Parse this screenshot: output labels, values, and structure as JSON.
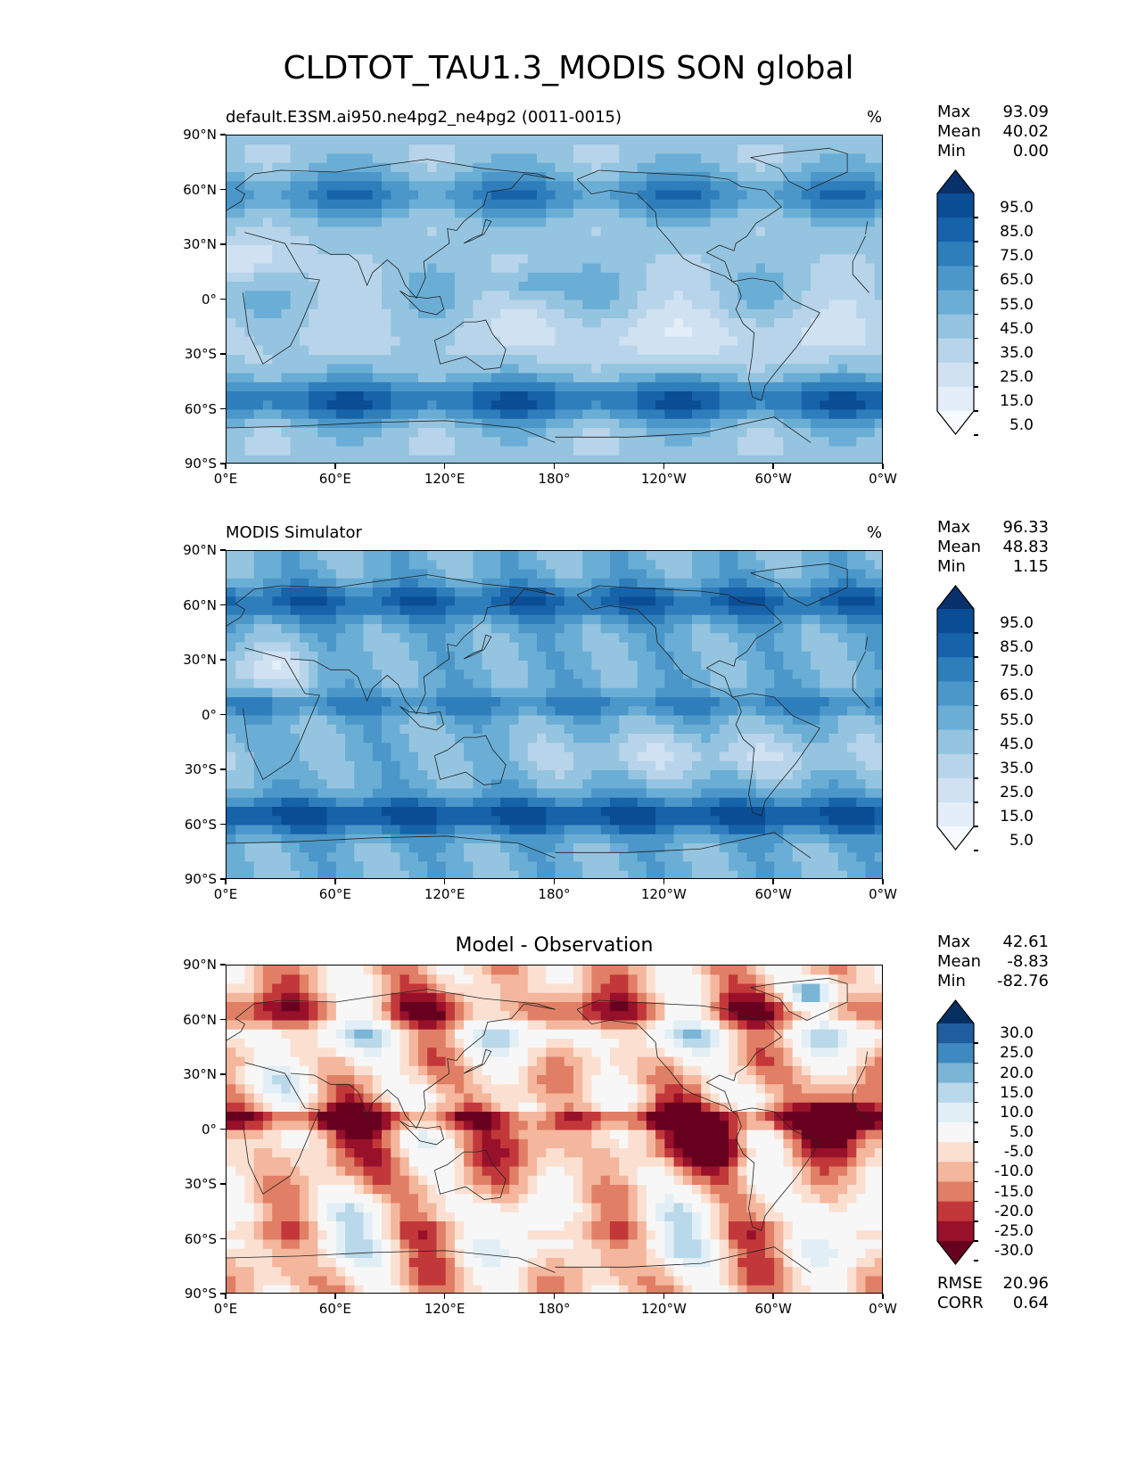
{
  "figure": {
    "title": "CLDTOT_TAU1.3_MODIS SON global"
  },
  "chart_data": [
    {
      "type": "heatmap",
      "panel": "test",
      "title": "default.E3SM.ai950.ne4pg2_ne4pg2 (0011-0015)",
      "units": "%",
      "stats": {
        "max_label": "Max",
        "max": "93.09",
        "mean_label": "Mean",
        "mean": "40.02",
        "min_label": "Min",
        "min": "0.00"
      },
      "x_ticks": [
        "0°E",
        "60°E",
        "120°E",
        "180°",
        "120°W",
        "60°W",
        "0°W"
      ],
      "y_ticks": [
        "90°N",
        "60°N",
        "30°N",
        "0°",
        "30°S",
        "60°S",
        "90°S"
      ],
      "xlim": [
        0,
        360
      ],
      "ylim": [
        -90,
        90
      ],
      "colormap": "Blues",
      "colorbar_levels": [
        "95.0",
        "85.0",
        "75.0",
        "65.0",
        "55.0",
        "45.0",
        "35.0",
        "25.0",
        "15.0",
        "5.0"
      ],
      "colorbar_colors": [
        "#08306b",
        "#0b4d94",
        "#1663aa",
        "#2f7ebc",
        "#4b97c9",
        "#6aaed6",
        "#94c4df",
        "#b7d4ea",
        "#d0e1f2",
        "#e3eef8",
        "#f7fbff"
      ]
    },
    {
      "type": "heatmap",
      "panel": "reference",
      "title": "MODIS Simulator",
      "units": "%",
      "stats": {
        "max_label": "Max",
        "max": "96.33",
        "mean_label": "Mean",
        "mean": "48.83",
        "min_label": "Min",
        "min": "1.15"
      },
      "x_ticks": [
        "0°E",
        "60°E",
        "120°E",
        "180°",
        "120°W",
        "60°W",
        "0°W"
      ],
      "y_ticks": [
        "90°N",
        "60°N",
        "30°N",
        "0°",
        "30°S",
        "60°S",
        "90°S"
      ],
      "xlim": [
        0,
        360
      ],
      "ylim": [
        -90,
        90
      ],
      "colormap": "Blues",
      "colorbar_levels": [
        "95.0",
        "85.0",
        "75.0",
        "65.0",
        "55.0",
        "45.0",
        "35.0",
        "25.0",
        "15.0",
        "5.0"
      ],
      "colorbar_colors": [
        "#08306b",
        "#0b4d94",
        "#1663aa",
        "#2f7ebc",
        "#4b97c9",
        "#6aaed6",
        "#94c4df",
        "#b7d4ea",
        "#d0e1f2",
        "#e3eef8",
        "#f7fbff"
      ]
    },
    {
      "type": "heatmap",
      "panel": "difference",
      "title": "Model - Observation",
      "stats": {
        "max_label": "Max",
        "max": "42.61",
        "mean_label": "Mean",
        "mean": "-8.83",
        "min_label": "Min",
        "min": "-82.76"
      },
      "metrics": {
        "rmse_label": "RMSE",
        "rmse": "20.96",
        "corr_label": "CORR",
        "corr": "0.64"
      },
      "x_ticks": [
        "0°E",
        "60°E",
        "120°E",
        "180°",
        "120°W",
        "60°W",
        "0°W"
      ],
      "y_ticks": [
        "90°N",
        "60°N",
        "30°N",
        "0°",
        "30°S",
        "60°S",
        "90°S"
      ],
      "xlim": [
        0,
        360
      ],
      "ylim": [
        -90,
        90
      ],
      "colormap": "RdBu",
      "colorbar_levels": [
        "30.0",
        "25.0",
        "20.0",
        "15.0",
        "10.0",
        "5.0",
        "-5.0",
        "-10.0",
        "-15.0",
        "-20.0",
        "-25.0",
        "-30.0"
      ],
      "colorbar_colors": [
        "#053061",
        "#1f5d9f",
        "#3f89c1",
        "#7bb5d6",
        "#b9d8e9",
        "#e2eef5",
        "#f7f7f7",
        "#fbe0d2",
        "#f4b69c",
        "#e07f65",
        "#c2383a",
        "#98102a",
        "#67001f"
      ]
    }
  ]
}
